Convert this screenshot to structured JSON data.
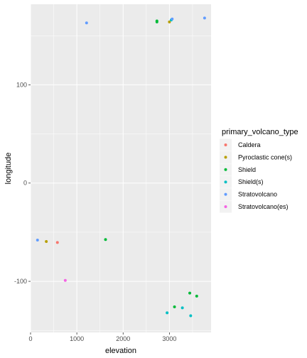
{
  "chart_data": {
    "type": "scatter",
    "title": "",
    "xlabel": "elevation",
    "ylabel": "longitude",
    "xlim": [
      0,
      3900
    ],
    "ylim": [
      -152,
      182
    ],
    "x_ticks": [
      0,
      1000,
      2000,
      3000
    ],
    "x_tick_labels": [
      "0",
      "1000",
      "2000",
      "3000"
    ],
    "y_ticks": [
      -100,
      0,
      100
    ],
    "y_tick_labels": [
      "-100",
      "0",
      "100"
    ],
    "grid": true,
    "legend_position": "right",
    "legend": {
      "title": "primary_volcano_type",
      "entries": [
        {
          "label": "Caldera",
          "color": "#F8766D"
        },
        {
          "label": "Pyroclastic cone(s)",
          "color": "#B79F00"
        },
        {
          "label": "Shield",
          "color": "#00BA38"
        },
        {
          "label": "Shield(s)",
          "color": "#00BFC4"
        },
        {
          "label": "Stratovolcano",
          "color": "#619CFF"
        },
        {
          "label": "Stratovolcano(es)",
          "color": "#F564E3"
        }
      ]
    },
    "series": [
      {
        "name": "Caldera",
        "color": "#F8766D",
        "points": [
          [
            580,
            -60.5
          ]
        ]
      },
      {
        "name": "Pyroclastic cone(s)",
        "color": "#B79F00",
        "points": [
          [
            340,
            -59.5
          ],
          [
            3000,
            164
          ]
        ]
      },
      {
        "name": "Shield",
        "color": "#00BA38",
        "points": [
          [
            1620,
            -57.5
          ],
          [
            2730,
            165
          ],
          [
            2730,
            164
          ],
          [
            3110,
            -126
          ],
          [
            3440,
            -112
          ],
          [
            3590,
            -115
          ]
        ]
      },
      {
        "name": "Shield(s)",
        "color": "#00BFC4",
        "points": [
          [
            2950,
            -132
          ],
          [
            3280,
            -127
          ],
          [
            3460,
            -135
          ],
          [
            3040,
            166
          ]
        ]
      },
      {
        "name": "Stratovolcano",
        "color": "#619CFF",
        "points": [
          [
            150,
            -58
          ],
          [
            1210,
            163
          ],
          [
            3060,
            167
          ],
          [
            3760,
            168
          ]
        ]
      },
      {
        "name": "Stratovolcano(es)",
        "color": "#F564E3",
        "points": [
          [
            750,
            -99
          ]
        ]
      }
    ]
  }
}
